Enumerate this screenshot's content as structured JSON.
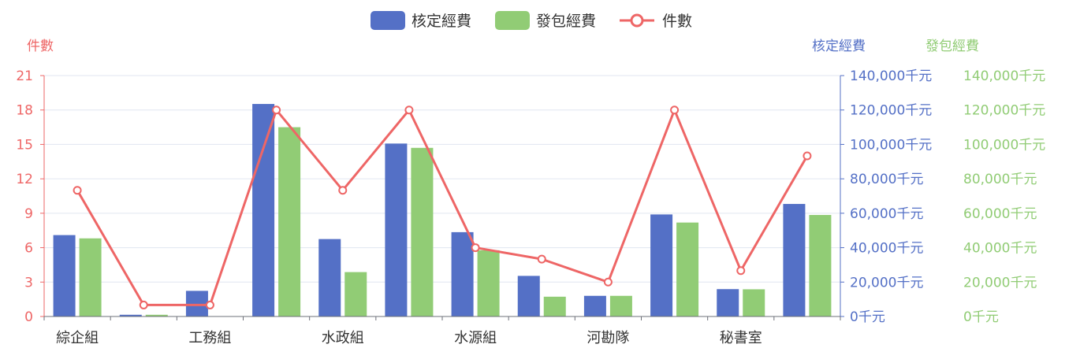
{
  "colors": {
    "approved": "#5470c6",
    "contracted": "#91cc75",
    "count": "#ee6666",
    "axis_dark": "#6e7079",
    "grid": "#e0e6f1"
  },
  "chart_data": {
    "type": "bar",
    "categories": [
      "綜企組",
      "",
      "工務組",
      "",
      "水政組",
      "",
      "水源組",
      "",
      "河勘隊",
      "",
      "秘書室",
      ""
    ],
    "x_tick_labels": [
      "綜企組",
      "工務組",
      "水政組",
      "水源組",
      "河勘隊",
      "秘書室"
    ],
    "series": [
      {
        "name": "核定經費",
        "type": "bar",
        "axis": "right1",
        "values": [
          47300,
          1000,
          14900,
          123500,
          45000,
          100500,
          49000,
          23600,
          12000,
          59300,
          15900,
          65400
        ]
      },
      {
        "name": "發包經費",
        "type": "bar",
        "axis": "right2",
        "values": [
          45400,
          1000,
          0,
          110000,
          25800,
          98000,
          38500,
          11500,
          12000,
          54600,
          15800,
          59000
        ]
      },
      {
        "name": "件數",
        "type": "line",
        "axis": "left",
        "values": [
          11,
          1,
          1,
          18,
          11,
          18,
          6,
          5,
          3,
          18,
          4,
          14
        ]
      }
    ],
    "legend": [
      "核定經費",
      "發包經費",
      "件數"
    ],
    "legend_position": "top-center",
    "y_left": {
      "label": "件數",
      "min": 0,
      "max": 21,
      "ticks": [
        "0",
        "3",
        "6",
        "9",
        "12",
        "15",
        "18",
        "21"
      ]
    },
    "y_right1": {
      "label": "核定經費",
      "min": 0,
      "max": 140000,
      "ticks": [
        "0千元",
        "20,000千元",
        "40,000千元",
        "60,000千元",
        "80,000千元",
        "100,000千元",
        "120,000千元",
        "140,000千元"
      ]
    },
    "y_right2": {
      "label": "發包經費",
      "min": 0,
      "max": 140000,
      "ticks": [
        "0千元",
        "20,000千元",
        "40,000千元",
        "60,000千元",
        "80,000千元",
        "100,000千元",
        "120,000千元",
        "140,000千元"
      ]
    },
    "grid": true
  }
}
